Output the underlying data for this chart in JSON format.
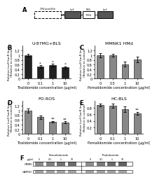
{
  "panel_B": {
    "title": "U-87MG+BLS",
    "xlabel": "Thalidomide concentration (μg/ml)",
    "ylabel": "Relative LucF/LacR level\n(Relative to control)",
    "x_labels": [
      "0",
      "0.1",
      "1",
      "10"
    ],
    "values": [
      1.0,
      0.52,
      0.58,
      0.48
    ],
    "errors": [
      0.06,
      0.05,
      0.05,
      0.04
    ],
    "bar_color": "#222222",
    "sig_labels": [
      "",
      "*",
      "*",
      "*"
    ]
  },
  "panel_C": {
    "title": "MMNK1 HMd",
    "xlabel": "Pomalidomide concentration (μg/ml)",
    "ylabel": "Relative LucF/LacR level\n(Relative to control)",
    "x_labels": [
      "0",
      "0.5",
      "1",
      "10"
    ],
    "values": [
      1.0,
      1.0,
      0.62,
      0.82
    ],
    "errors": [
      0.1,
      0.07,
      0.1,
      0.12
    ],
    "bar_color": "#888888",
    "sig_labels": [
      "",
      "",
      "",
      ""
    ]
  },
  "panel_D": {
    "title": "FO-ROS",
    "xlabel": "Thalidomide concentration (μg/ml)",
    "ylabel": "Relative LucF/LacR level\n(Relative to control)",
    "x_labels": [
      "0",
      "0.1",
      "1",
      "10"
    ],
    "values": [
      1.0,
      0.72,
      0.52,
      0.5
    ],
    "errors": [
      0.08,
      0.07,
      0.04,
      0.04
    ],
    "bar_color": "#888888",
    "sig_labels": [
      "",
      "",
      "**",
      "**"
    ]
  },
  "panel_E": {
    "title": "HC-BLS",
    "xlabel": "Pomalidomide concentration (μg/ml)",
    "ylabel": "Relative LucF/LacR level\n(Relative to control)",
    "x_labels": [
      "0",
      "0.1",
      "1",
      "10"
    ],
    "values": [
      0.88,
      0.86,
      0.76,
      0.62
    ],
    "errors": [
      0.05,
      0.06,
      0.08,
      0.04
    ],
    "bar_color": "#888888",
    "sig_labels": [
      "",
      "",
      "",
      "**"
    ]
  },
  "figure_bg": "#ffffff",
  "bar_width": 0.55,
  "ylim_B": [
    0,
    1.4
  ],
  "ylim_C": [
    0,
    1.4
  ],
  "ylim_D": [
    0,
    1.4
  ],
  "ylim_E": [
    0.0,
    1.0
  ],
  "yticks_B": [
    0.0,
    0.2,
    0.4,
    0.6,
    0.8,
    1.0,
    1.2
  ],
  "yticks_C": [
    0.0,
    0.2,
    0.4,
    0.6,
    0.8,
    1.0,
    1.2
  ],
  "yticks_D": [
    0.0,
    0.2,
    0.4,
    0.6,
    0.8,
    1.0,
    1.2
  ],
  "yticks_E": [
    0.2,
    0.4,
    0.6,
    0.8
  ],
  "tick_fontsize": 3.5,
  "label_fontsize": 3.5,
  "title_fontsize": 4.5,
  "panel_label_fontsize": 6
}
